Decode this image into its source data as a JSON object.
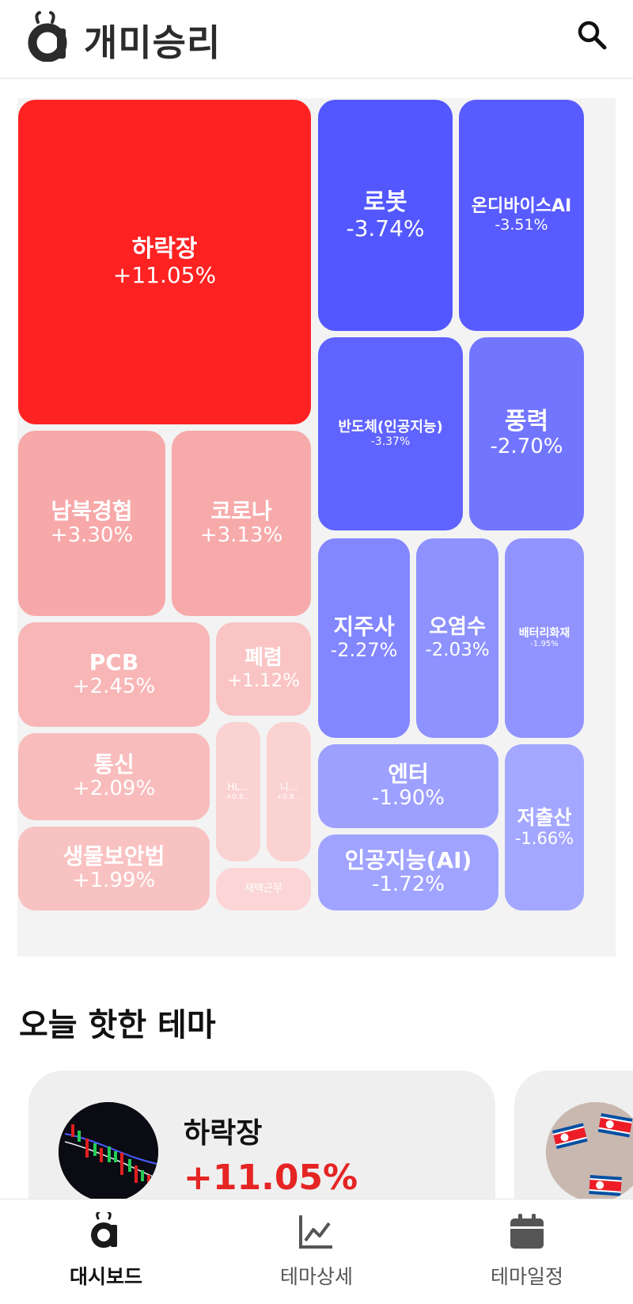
{
  "header": {
    "brand": "개미승리",
    "brand_icon": "ant-a-logo-icon",
    "search_icon": "search-icon"
  },
  "treemap": {
    "tiles": [
      {
        "name": "하락장",
        "pct": "+11.05%"
      },
      {
        "name": "로봇",
        "pct": "-3.74%"
      },
      {
        "name": "온디바이스AI",
        "pct": "-3.51%"
      },
      {
        "name": "반도체(인공지능)",
        "pct": "-3.37%"
      },
      {
        "name": "풍력",
        "pct": "-2.70%"
      },
      {
        "name": "남북경협",
        "pct": "+3.30%"
      },
      {
        "name": "코로나",
        "pct": "+3.13%"
      },
      {
        "name": "지주사",
        "pct": "-2.27%"
      },
      {
        "name": "오염수",
        "pct": "-2.03%"
      },
      {
        "name": "배터리화재",
        "pct": "-1.95%"
      },
      {
        "name": "PCB",
        "pct": "+2.45%"
      },
      {
        "name": "폐렴",
        "pct": "+1.12%"
      },
      {
        "name": "통신",
        "pct": "+2.09%"
      },
      {
        "name": "HL...",
        "pct": "+0.8..."
      },
      {
        "name": "니...",
        "pct": "+0.8..."
      },
      {
        "name": "엔터",
        "pct": "-1.90%"
      },
      {
        "name": "저출산",
        "pct": "-1.66%"
      },
      {
        "name": "생물보안법",
        "pct": "+1.99%"
      },
      {
        "name": "재택근무",
        "pct": ""
      },
      {
        "name": "인공지능(AI)",
        "pct": "-1.72%"
      }
    ]
  },
  "hot_themes": {
    "title": "오늘 핫한 테마",
    "cards": [
      {
        "name": "하락장",
        "pct": "+11.05%",
        "image": "candlestick-chart-thumbnail"
      },
      {
        "name": "",
        "pct": "",
        "image": "north-korea-flags-thumbnail"
      }
    ]
  },
  "nav": {
    "items": [
      {
        "label": "대시보드",
        "icon": "dashboard-ant-icon",
        "active": true
      },
      {
        "label": "테마상세",
        "icon": "line-chart-icon",
        "active": false
      },
      {
        "label": "테마일정",
        "icon": "calendar-icon",
        "active": false
      }
    ]
  },
  "colors": {
    "up_strong": "#ff2222",
    "down_strong": "#5257ff",
    "up_text": "#e52424",
    "accent_dark": "#2b2b2b"
  }
}
